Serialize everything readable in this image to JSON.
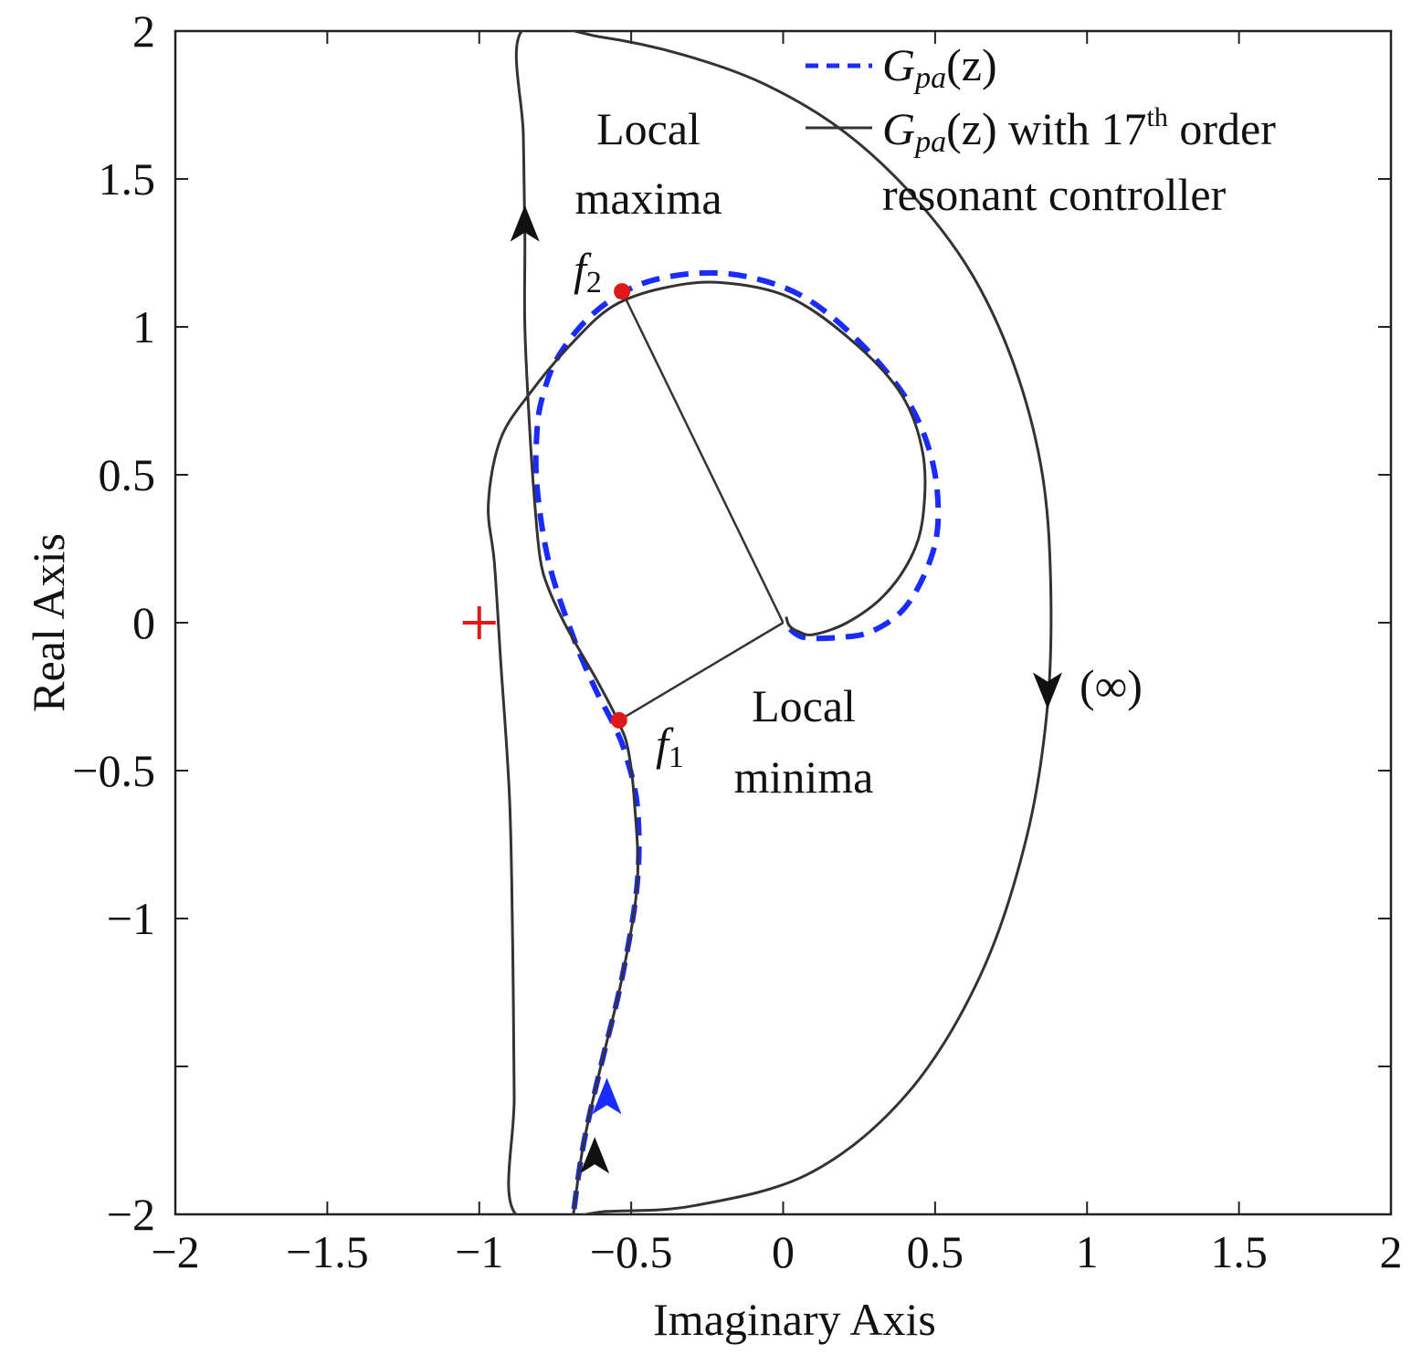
{
  "chart_data": {
    "type": "line",
    "title": "",
    "xlabel": "Imaginary Axis",
    "ylabel": "Real Axis",
    "xlim": [
      -2,
      2
    ],
    "ylim": [
      -2,
      2
    ],
    "xticks": [
      -2,
      -1.5,
      -1,
      -0.5,
      0,
      0.5,
      1,
      1.5,
      2
    ],
    "xtick_labels": [
      "−2",
      "−1.5",
      "−1",
      "−0.5",
      "0",
      "0.5",
      "1",
      "1.5",
      "2"
    ],
    "yticks": [
      -2,
      -1.5,
      -1,
      -0.5,
      0,
      0.5,
      1,
      1.5,
      2
    ],
    "ytick_labels": [
      "−2",
      "",
      "−1",
      "−0.5",
      "0",
      "0.5",
      "1",
      "1.5",
      "2"
    ],
    "grid": false,
    "legend_position": "top-right",
    "colors": {
      "dashed_series": "#1a2bff",
      "solid_series": "#333333",
      "critical_point": "#e01818",
      "marker_points": "#e01818",
      "arrow_black": "#111111",
      "arrow_blue": "#1a2bff"
    },
    "legend": {
      "entry1": {
        "main": "G",
        "sub": "pa",
        "tail": "(z)"
      },
      "entry2": {
        "main": "G",
        "sub": "pa",
        "tail": "(z)",
        "text1": " with 17",
        "sup": "th",
        "text2": " order",
        "line2": "resonant controller"
      }
    },
    "series": [
      {
        "name": "G_pa(z)",
        "style": "dashed",
        "points": [
          [
            -0.7,
            -2.08
          ],
          [
            -0.66,
            -1.78
          ],
          [
            -0.6,
            -1.5
          ],
          [
            -0.53,
            -1.2
          ],
          [
            -0.48,
            -0.88
          ],
          [
            -0.48,
            -0.62
          ],
          [
            -0.52,
            -0.44
          ],
          [
            -0.56,
            -0.34
          ],
          [
            -0.62,
            -0.22
          ],
          [
            -0.69,
            -0.05
          ],
          [
            -0.77,
            0.2
          ],
          [
            -0.81,
            0.46
          ],
          [
            -0.81,
            0.65
          ],
          [
            -0.79,
            0.77
          ],
          [
            -0.74,
            0.9
          ],
          [
            -0.63,
            1.04
          ],
          [
            -0.48,
            1.14
          ],
          [
            -0.3,
            1.18
          ],
          [
            -0.12,
            1.17
          ],
          [
            0.07,
            1.1
          ],
          [
            0.25,
            0.95
          ],
          [
            0.41,
            0.75
          ],
          [
            0.49,
            0.55
          ],
          [
            0.51,
            0.35
          ],
          [
            0.48,
            0.2
          ],
          [
            0.4,
            0.05
          ],
          [
            0.29,
            -0.03
          ],
          [
            0.18,
            -0.05
          ],
          [
            0.07,
            -0.05
          ],
          [
            0.02,
            -0.02
          ]
        ]
      },
      {
        "name": "G_pa(z) with 17th order resonant controller",
        "style": "solid",
        "points": [
          [
            -0.7,
            -2.08
          ],
          [
            -0.66,
            -1.78
          ],
          [
            -0.6,
            -1.5
          ],
          [
            -0.53,
            -1.2
          ],
          [
            -0.48,
            -0.88
          ],
          [
            -0.49,
            -0.6
          ],
          [
            -0.51,
            -0.43
          ],
          [
            -0.54,
            -0.34
          ],
          [
            -0.61,
            -0.2
          ],
          [
            -0.71,
            -0.02
          ],
          [
            -0.77,
            0.11
          ],
          [
            -0.8,
            0.22
          ],
          [
            -0.82,
            0.44
          ],
          [
            -0.835,
            0.67
          ],
          [
            -0.85,
            1.0
          ],
          [
            -0.85,
            1.3
          ],
          [
            -0.855,
            1.65
          ],
          [
            -0.86,
            2.0
          ],
          [
            -0.6,
            1.98
          ],
          [
            -0.33,
            1.92
          ],
          [
            -0.06,
            1.82
          ],
          [
            0.2,
            1.66
          ],
          [
            0.43,
            1.44
          ],
          [
            0.62,
            1.18
          ],
          [
            0.76,
            0.87
          ],
          [
            0.85,
            0.52
          ],
          [
            0.88,
            0.15
          ],
          [
            0.87,
            -0.28
          ],
          [
            0.8,
            -0.73
          ],
          [
            0.65,
            -1.19
          ],
          [
            0.41,
            -1.59
          ],
          [
            0.09,
            -1.86
          ],
          [
            -0.29,
            -1.97
          ],
          [
            -0.58,
            -1.99
          ],
          [
            -0.88,
            -2.0
          ],
          [
            -0.885,
            -1.6
          ],
          [
            -0.89,
            -1.1
          ],
          [
            -0.9,
            -0.6
          ],
          [
            -0.93,
            -0.12
          ],
          [
            -0.95,
            0.2
          ],
          [
            -0.97,
            0.4
          ],
          [
            -0.93,
            0.62
          ],
          [
            -0.83,
            0.78
          ],
          [
            -0.69,
            0.95
          ],
          [
            -0.56,
            1.07
          ],
          [
            -0.4,
            1.13
          ],
          [
            -0.21,
            1.15
          ],
          [
            0.02,
            1.1
          ],
          [
            0.23,
            0.95
          ],
          [
            0.39,
            0.77
          ],
          [
            0.46,
            0.57
          ],
          [
            0.46,
            0.36
          ],
          [
            0.42,
            0.22
          ],
          [
            0.33,
            0.09
          ],
          [
            0.21,
            0.0
          ],
          [
            0.1,
            -0.04
          ],
          [
            0.05,
            -0.03
          ],
          [
            0.02,
            -0.01
          ],
          [
            0.01,
            0.02
          ]
        ]
      }
    ],
    "markers": [
      {
        "name": "f2",
        "x": -0.53,
        "y": 1.12
      },
      {
        "name": "f1",
        "x": -0.54,
        "y": -0.33
      }
    ],
    "critical_point": {
      "x": -1,
      "y": 0,
      "symbol": "+"
    },
    "radial_lines": [
      {
        "from": [
          0,
          0
        ],
        "to": [
          -0.53,
          1.12
        ]
      },
      {
        "from": [
          0,
          0
        ],
        "to": [
          -0.54,
          -0.33
        ]
      }
    ],
    "arrows": [
      {
        "x": -0.85,
        "y": 1.35,
        "direction": "up",
        "color": "black"
      },
      {
        "x": 0.87,
        "y": -0.23,
        "direction": "down",
        "color": "black"
      },
      {
        "x": -0.58,
        "y": -1.6,
        "direction": "up",
        "color": "blue"
      },
      {
        "x": -0.62,
        "y": -1.8,
        "direction": "up",
        "color": "black"
      }
    ],
    "annotations": {
      "local_maxima_line1": "Local",
      "local_maxima_line2": "maxima",
      "f2_main": "f",
      "f2_sub": "2",
      "f1_main": "f",
      "f1_sub": "1",
      "local_minima_line1": "Local",
      "local_minima_line2": "minima",
      "infinity": "(∞)"
    }
  }
}
